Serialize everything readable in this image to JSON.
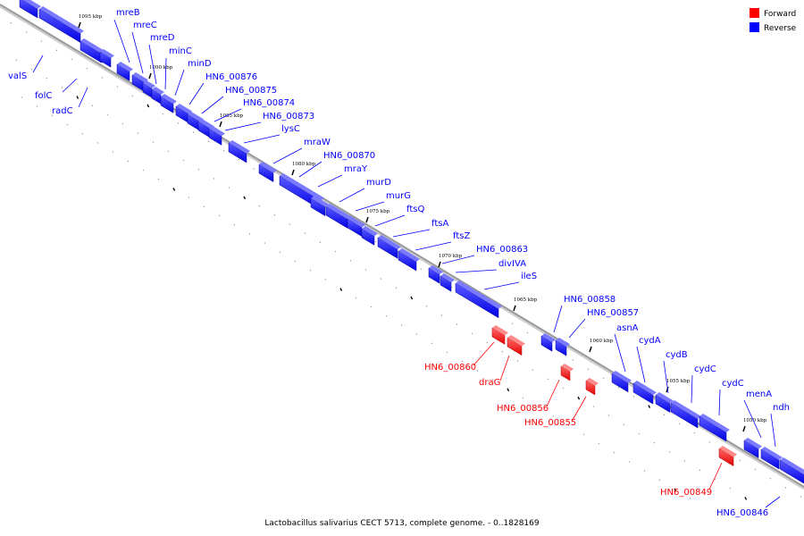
{
  "legend": {
    "items": [
      {
        "label": "Forward",
        "color": "#ff0000"
      },
      {
        "label": "Reverse",
        "color": "#0000ff"
      }
    ]
  },
  "caption": "Lactobacillus salivarius CECT 5713, complete genome. - 0..1828169",
  "colors": {
    "forward": "#ff0000",
    "reverse": "#0000ff",
    "backbone": "#999999"
  },
  "ticks": [
    "1095 kbp",
    "1090 kbp",
    "1085 kbp",
    "1080 kbp",
    "1075 kbp",
    "1070 kbp",
    "1065 kbp",
    "1060 kbp",
    "1055 kbp",
    "1050 kbp"
  ],
  "genes": [
    {
      "name": "valS",
      "strand": "reverse"
    },
    {
      "name": "folC",
      "strand": "reverse"
    },
    {
      "name": "radC",
      "strand": "reverse"
    },
    {
      "name": "mreB",
      "strand": "reverse"
    },
    {
      "name": "mreC",
      "strand": "reverse"
    },
    {
      "name": "mreD",
      "strand": "reverse"
    },
    {
      "name": "minC",
      "strand": "reverse"
    },
    {
      "name": "minD",
      "strand": "reverse"
    },
    {
      "name": "HN6_00876",
      "strand": "reverse"
    },
    {
      "name": "HN6_00875",
      "strand": "reverse"
    },
    {
      "name": "HN6_00874",
      "strand": "reverse"
    },
    {
      "name": "HN6_00873",
      "strand": "reverse"
    },
    {
      "name": "lysC",
      "strand": "reverse"
    },
    {
      "name": "mraW",
      "strand": "reverse"
    },
    {
      "name": "HN6_00870",
      "strand": "reverse"
    },
    {
      "name": "mraY",
      "strand": "reverse"
    },
    {
      "name": "murD",
      "strand": "reverse"
    },
    {
      "name": "murG",
      "strand": "reverse"
    },
    {
      "name": "ftsQ",
      "strand": "reverse"
    },
    {
      "name": "ftsA",
      "strand": "reverse"
    },
    {
      "name": "ftsZ",
      "strand": "reverse"
    },
    {
      "name": "HN6_00863",
      "strand": "reverse"
    },
    {
      "name": "divIVA",
      "strand": "reverse"
    },
    {
      "name": "ileS",
      "strand": "reverse"
    },
    {
      "name": "HN6_00860",
      "strand": "forward"
    },
    {
      "name": "draG",
      "strand": "forward"
    },
    {
      "name": "HN6_00858",
      "strand": "reverse"
    },
    {
      "name": "HN6_00857",
      "strand": "reverse"
    },
    {
      "name": "HN6_00856",
      "strand": "forward"
    },
    {
      "name": "HN6_00855",
      "strand": "forward"
    },
    {
      "name": "asnA",
      "strand": "reverse"
    },
    {
      "name": "cydA",
      "strand": "reverse"
    },
    {
      "name": "cydB",
      "strand": "reverse"
    },
    {
      "name": "cydC",
      "strand": "reverse"
    },
    {
      "name": "cydC",
      "strand": "reverse"
    },
    {
      "name": "menA",
      "strand": "reverse"
    },
    {
      "name": "ndh",
      "strand": "reverse"
    },
    {
      "name": "HN6_00849",
      "strand": "forward"
    },
    {
      "name": "HN6_00846",
      "strand": "reverse"
    }
  ]
}
